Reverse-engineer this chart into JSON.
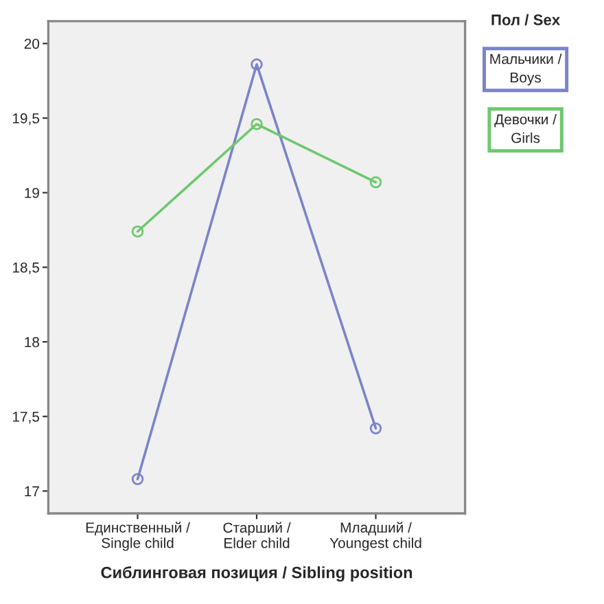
{
  "chart_data": {
    "type": "line",
    "xlabel": "Сиблинговая позиция / Sibling position",
    "legend_title": "Пол / Sex",
    "categories": [
      "Единственный /\nSingle child",
      "Старший /\nElder child",
      "Младший /\nYoungest child"
    ],
    "series": [
      {
        "name": "Мальчики /\nBoys",
        "color": "#7b84c8",
        "values": [
          17.08,
          19.86,
          17.42
        ]
      },
      {
        "name": "Девочки /\nGirls",
        "color": "#6dc86d",
        "values": [
          18.74,
          19.46,
          19.07
        ]
      }
    ],
    "ylim": [
      16.85,
      20.15
    ],
    "yticks": [
      17,
      {
        "value": 17.5,
        "label": "17,5"
      },
      18,
      {
        "value": 18.5,
        "label": "18,5"
      },
      19,
      {
        "value": 19.5,
        "label": "19,5"
      },
      20
    ],
    "marker": "circle",
    "line_style": "solid",
    "grid": false,
    "legend": "right"
  }
}
